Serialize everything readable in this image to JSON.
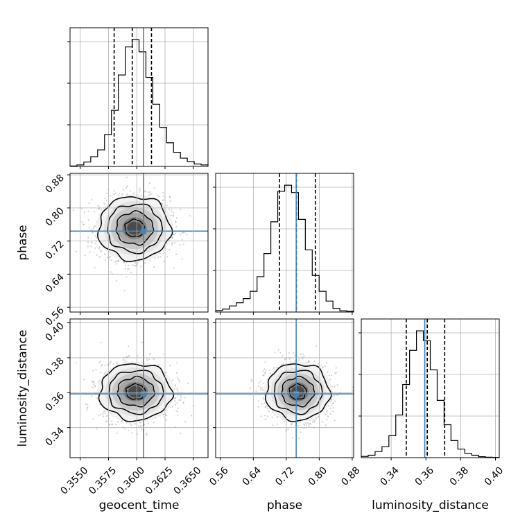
{
  "chart_data": {
    "type": "corner",
    "parameters": [
      "geocent_time",
      "phase",
      "luminosity_distance"
    ],
    "axis_labels": {
      "geocent_time": "geocent_time",
      "phase": "phase",
      "luminosity_distance": "luminosity_distance"
    },
    "ranges": {
      "geocent_time": [
        0.3541,
        0.3663
      ],
      "phase": [
        0.5485,
        0.8835
      ],
      "luminosity_distance": [
        0.3228,
        0.4022
      ]
    },
    "ticks": {
      "geocent_time": {
        "values": [
          0.355,
          0.3575,
          0.36,
          0.3625,
          0.365
        ],
        "labels": [
          "0.3550",
          "0.3575",
          "0.3600",
          "0.3625",
          "0.3650"
        ]
      },
      "phase": {
        "values": [
          0.56,
          0.64,
          0.72,
          0.8,
          0.88
        ],
        "labels": [
          "0.56",
          "0.64",
          "0.72",
          "0.80",
          "0.88"
        ]
      },
      "luminosity_distance": {
        "values": [
          0.34,
          0.36,
          0.38,
          0.4
        ],
        "labels": [
          "0.34",
          "0.36",
          "0.38",
          "0.40"
        ]
      }
    },
    "truths": {
      "geocent_time": 0.3606,
      "phase": 0.744,
      "luminosity_distance": 0.3593
    },
    "quantiles": {
      "geocent_time": [
        0.358,
        0.3596,
        0.3613
      ],
      "phase": [
        0.7035,
        0.7445,
        0.7905
      ],
      "luminosity_distance": [
        0.3487,
        0.3608,
        0.3708
      ]
    },
    "histograms": {
      "geocent_time": {
        "range": [
          0.3541,
          0.3663
        ],
        "counts": [
          2,
          6,
          18,
          40,
          68,
          130,
          230,
          375,
          490,
          520,
          470,
          365,
          255,
          160,
          97,
          58,
          34,
          20,
          10,
          6
        ]
      },
      "phase": {
        "range": [
          0.5485,
          0.8835
        ],
        "counts": [
          6,
          12,
          25,
          38,
          55,
          85,
          145,
          240,
          370,
          495,
          520,
          490,
          380,
          255,
          150,
          85,
          45,
          15,
          5,
          3
        ]
      },
      "luminosity_distance": {
        "range": [
          0.3228,
          0.4022
        ],
        "counts": [
          5,
          10,
          25,
          45,
          90,
          175,
          300,
          440,
          520,
          480,
          360,
          235,
          135,
          70,
          35,
          18,
          10,
          4,
          2,
          1
        ]
      }
    },
    "pairs": [
      {
        "x": "geocent_time",
        "y": "phase",
        "center": [
          0.3598,
          0.751
        ],
        "spread": [
          0.00155,
          0.0375
        ]
      },
      {
        "x": "geocent_time",
        "y": "luminosity_distance",
        "center": [
          0.3599,
          0.3605
        ],
        "spread": [
          0.00155,
          0.0079
        ]
      },
      {
        "x": "phase",
        "y": "luminosity_distance",
        "center": [
          0.748,
          0.3605
        ],
        "spread": [
          0.0375,
          0.0079
        ]
      }
    ],
    "contour_levels": [
      0.118,
      0.393,
      0.675,
      0.865
    ],
    "colors": {
      "truth": "#4682b4",
      "hist": "#000000",
      "quantile": "#000000",
      "grid": "#b0b0b0",
      "scatter": "#9a9a9a"
    },
    "grid": true
  }
}
